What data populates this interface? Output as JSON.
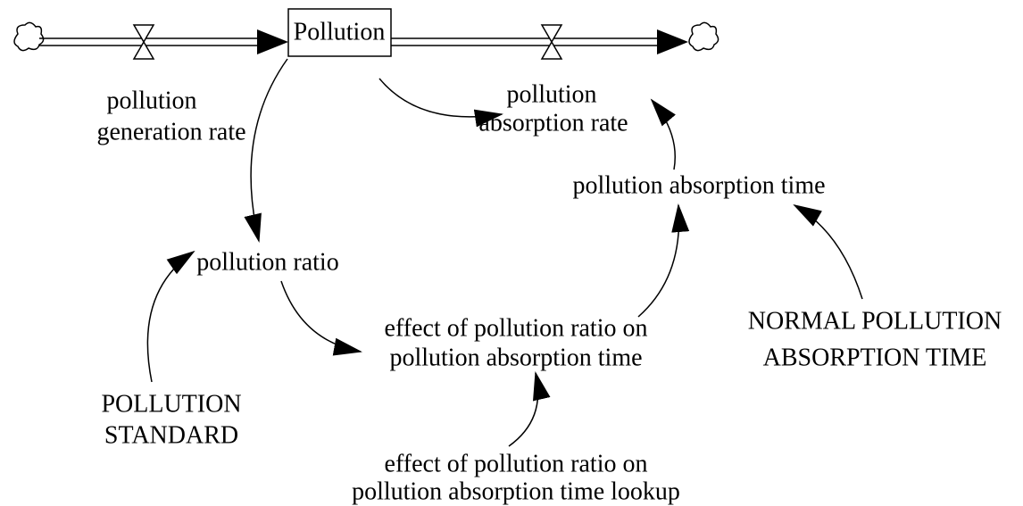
{
  "stock": {
    "label": "Pollution"
  },
  "flows": [
    {
      "lines": [
        "pollution",
        "generation rate"
      ]
    },
    {
      "lines": [
        "pollution",
        "absorption rate"
      ]
    }
  ],
  "variables": [
    {
      "lines": [
        "pollution absorption time"
      ]
    },
    {
      "lines": [
        "pollution ratio"
      ]
    },
    {
      "lines": [
        "effect of pollution ratio on",
        "pollution absorption time"
      ]
    },
    {
      "lines": [
        "NORMAL POLLUTION",
        "ABSORPTION TIME"
      ]
    },
    {
      "lines": [
        "POLLUTION",
        "STANDARD"
      ]
    },
    {
      "lines": [
        "effect of pollution ratio on",
        "pollution absorption time lookup"
      ]
    }
  ]
}
